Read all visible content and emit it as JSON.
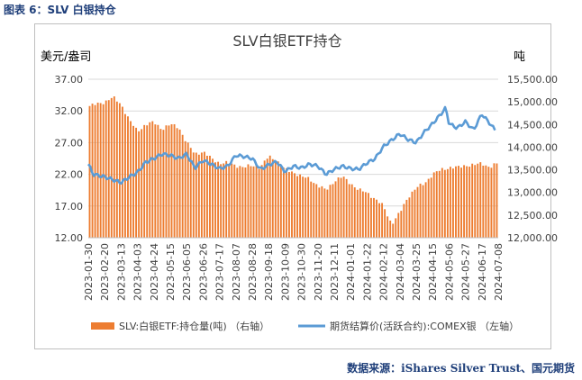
{
  "caption": "图表 6：SLV 白银持仓",
  "source": "数据来源：iShares Silver Trust、国元期货",
  "chart_data": {
    "type": "bar+line",
    "title": "SLV白银ETF持仓",
    "left_unit": "美元/盎司",
    "right_unit": "吨",
    "left_axis": {
      "min": 12,
      "max": 37,
      "ticks": [
        "12.00",
        "17.00",
        "22.00",
        "27.00",
        "32.00",
        "37.00"
      ]
    },
    "right_axis": {
      "min": 12000,
      "max": 15500,
      "ticks": [
        "12,000.00",
        "12,500.00",
        "13,000.00",
        "13,500.00",
        "14,000.00",
        "14,500.00",
        "15,000.00",
        "15,500.00"
      ]
    },
    "x_tick_labels": [
      "2023-01-30",
      "2023-02-20",
      "2023-03-13",
      "2023-04-03",
      "2023-04-24",
      "2023-05-15",
      "2023-06-05",
      "2023-06-26",
      "2023-07-17",
      "2023-08-07",
      "2023-08-28",
      "2023-09-18",
      "2023-10-09",
      "2023-10-30",
      "2023-11-20",
      "2023-12-11",
      "2024-01-01",
      "2024-01-22",
      "2024-02-12",
      "2024-03-04",
      "2024-03-25",
      "2024-04-15",
      "2024-05-06",
      "2024-05-27",
      "2024-06-17",
      "2024-07-08"
    ],
    "bar_series": {
      "name": "SLV:白银ETF:持仓量(吨) （右轴）",
      "color": "#ed7d31",
      "axis": "right",
      "anchors": [
        [
          0,
          14900
        ],
        [
          2,
          15000
        ],
        [
          3,
          15100
        ],
        [
          4,
          14950
        ],
        [
          5,
          14600
        ],
        [
          6,
          14350
        ],
        [
          7,
          14500
        ],
        [
          8,
          14550
        ],
        [
          9,
          14400
        ],
        [
          10,
          14500
        ],
        [
          11,
          14450
        ],
        [
          12,
          14100
        ],
        [
          13,
          13850
        ],
        [
          14,
          13900
        ],
        [
          15,
          13750
        ],
        [
          16,
          13650
        ],
        [
          17,
          13650
        ],
        [
          18,
          13600
        ],
        [
          19,
          13550
        ],
        [
          20,
          13600
        ],
        [
          21,
          13550
        ],
        [
          22,
          13800
        ],
        [
          23,
          13700
        ],
        [
          24,
          13500
        ],
        [
          25,
          13450
        ],
        [
          26,
          13350
        ],
        [
          27,
          13300
        ],
        [
          28,
          13150
        ],
        [
          29,
          13050
        ],
        [
          30,
          13250
        ],
        [
          31,
          13350
        ],
        [
          32,
          13200
        ],
        [
          33,
          13050
        ],
        [
          34,
          13000
        ],
        [
          35,
          12850
        ],
        [
          36,
          12700
        ],
        [
          37,
          12300
        ],
        [
          38,
          12550
        ],
        [
          39,
          12900
        ],
        [
          40,
          13100
        ],
        [
          41,
          13200
        ],
        [
          42,
          13400
        ],
        [
          43,
          13500
        ],
        [
          44,
          13550
        ],
        [
          45,
          13550
        ],
        [
          46,
          13600
        ],
        [
          47,
          13600
        ],
        [
          48,
          13650
        ],
        [
          49,
          13550
        ],
        [
          50,
          13650
        ]
      ]
    },
    "line_series": {
      "name": "期货结算价(活跃合约):COMEX银 （左轴）",
      "color": "#5b9bd5",
      "axis": "left",
      "anchors": [
        [
          0,
          23.6
        ],
        [
          0.6,
          22.0
        ],
        [
          2,
          21.6
        ],
        [
          4,
          20.7
        ],
        [
          5,
          21.6
        ],
        [
          6,
          22.3
        ],
        [
          7,
          23.9
        ],
        [
          8,
          24.5
        ],
        [
          9,
          25.2
        ],
        [
          10,
          25.0
        ],
        [
          11,
          24.5
        ],
        [
          12,
          25.2
        ],
        [
          13,
          23.0
        ],
        [
          14,
          24.2
        ],
        [
          15,
          23.6
        ],
        [
          16,
          22.9
        ],
        [
          17,
          23.3
        ],
        [
          18,
          25.0
        ],
        [
          19,
          24.8
        ],
        [
          20,
          24.5
        ],
        [
          21,
          22.8
        ],
        [
          22,
          23.5
        ],
        [
          23,
          24.0
        ],
        [
          24,
          22.4
        ],
        [
          25,
          23.3
        ],
        [
          26,
          23.0
        ],
        [
          27,
          23.6
        ],
        [
          28,
          23.3
        ],
        [
          29,
          22.0
        ],
        [
          30,
          22.8
        ],
        [
          31,
          23.3
        ],
        [
          32,
          22.9
        ],
        [
          33,
          22.8
        ],
        [
          34,
          23.8
        ],
        [
          35,
          24.5
        ],
        [
          36,
          26.4
        ],
        [
          37,
          27.4
        ],
        [
          38,
          28.4
        ],
        [
          39,
          27.5
        ],
        [
          40,
          27.0
        ],
        [
          41,
          28.7
        ],
        [
          42,
          30.0
        ],
        [
          43,
          31.5
        ],
        [
          43.6,
          32.5
        ],
        [
          44,
          30.0
        ],
        [
          45,
          29.3
        ],
        [
          46,
          30.3
        ],
        [
          47,
          29.0
        ],
        [
          48,
          31.5
        ],
        [
          49,
          30.0
        ],
        [
          49.6,
          29.0
        ]
      ]
    }
  }
}
